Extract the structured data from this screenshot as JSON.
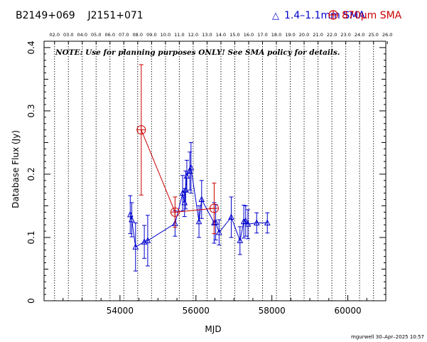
{
  "header": {
    "source_names": "B2149+069    J2151+071",
    "legend_blue": "1.4–1.1mm SMA",
    "legend_red": "870μm SMA"
  },
  "note": "NOTE: Use for planning purposes ONLY!  See SMA policy for details.",
  "footer": "mgurwell 30–Apr–2025 10:57",
  "colors": {
    "blue": "#0000cc",
    "red": "#cc0000",
    "grid": "#000000"
  },
  "chart_data": {
    "type": "scatter",
    "xlabel": "MJD",
    "ylabel": "Database Flux (Jy)",
    "xlim": [
      52000,
      61000
    ],
    "ylim": [
      0,
      0.41
    ],
    "x_ticks": [
      54000,
      56000,
      58000,
      60000
    ],
    "x_tick_labels": [
      "54000",
      "56000",
      "58000",
      "60000"
    ],
    "y_ticks": [
      0,
      0.1,
      0.2,
      0.3,
      0.4
    ],
    "y_tick_labels": [
      "0",
      "0.1",
      "0.2",
      "0.3",
      "0.4"
    ],
    "top_axis": {
      "labels": [
        "02.0",
        "03.0",
        "04.0",
        "05.0",
        "06.0",
        "07.0",
        "08.0",
        "09.0",
        "10.0",
        "11.0",
        "12.0",
        "13.0",
        "14.0",
        "15.0",
        "16.0",
        "17.0",
        "18.0",
        "19.0",
        "20.0",
        "21.0",
        "22.0",
        "23.0",
        "24.0",
        "25.0",
        "26.0"
      ],
      "mjd": [
        52276,
        52641,
        53006,
        53371,
        53736,
        54101,
        54466,
        54832,
        55197,
        55562,
        55927,
        56293,
        56658,
        57023,
        57388,
        57754,
        58119,
        58484,
        58849,
        59215,
        59580,
        59945,
        60310,
        60676,
        61041
      ]
    },
    "series": [
      {
        "name": "1.4–1.1mm SMA",
        "color": "#0000cc",
        "marker": "triangle",
        "x": [
          54270,
          54310,
          54410,
          54640,
          54730,
          55450,
          55650,
          55700,
          55730,
          55760,
          55840,
          55870,
          56080,
          56150,
          56480,
          56520,
          56610,
          56930,
          57160,
          57260,
          57310,
          57370,
          57600,
          57880
        ],
        "y": [
          0.136,
          0.128,
          0.085,
          0.093,
          0.095,
          0.122,
          0.17,
          0.155,
          0.175,
          0.197,
          0.205,
          0.21,
          0.125,
          0.16,
          0.123,
          0.124,
          0.108,
          0.132,
          0.095,
          0.125,
          0.126,
          0.121,
          0.123,
          0.123
        ],
        "err": [
          0.03,
          0.027,
          0.038,
          0.026,
          0.04,
          0.02,
          0.028,
          0.022,
          0.03,
          0.025,
          0.03,
          0.04,
          0.025,
          0.03,
          0.032,
          0.028,
          0.02,
          0.032,
          0.022,
          0.026,
          0.024,
          0.023,
          0.016,
          0.016
        ]
      },
      {
        "name": "870μm SMA",
        "color": "#cc0000",
        "marker": "circle-plus",
        "x": [
          54560,
          55450,
          56480
        ],
        "y": [
          0.27,
          0.14,
          0.146
        ],
        "err": [
          0.103,
          0.024,
          0.04
        ]
      }
    ]
  }
}
